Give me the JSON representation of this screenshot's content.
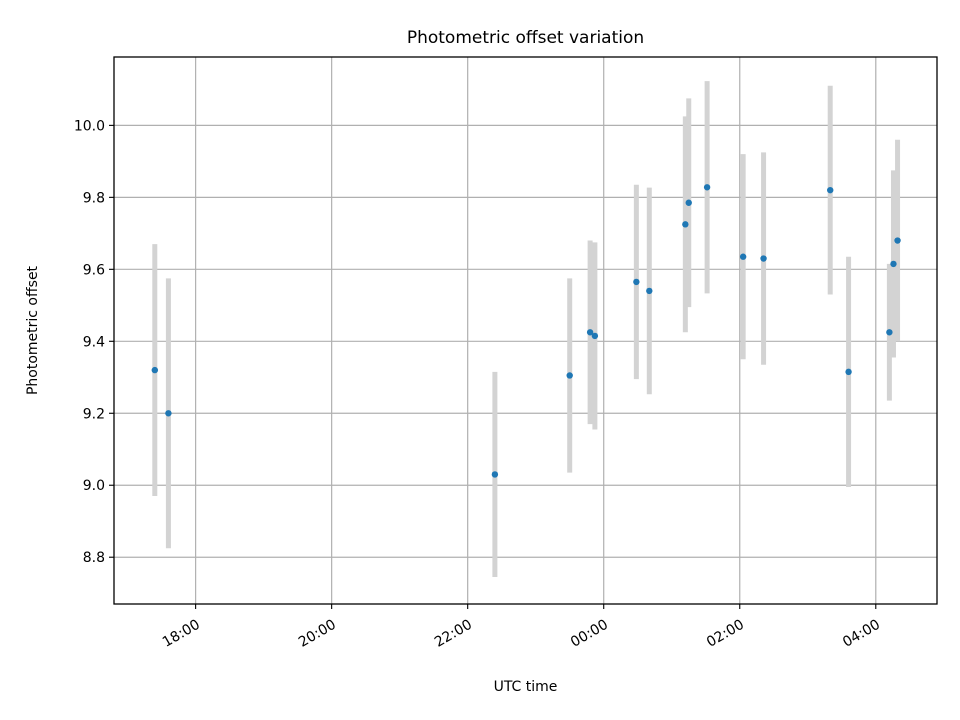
{
  "chart_data": {
    "type": "scatter",
    "title": "Photometric offset variation",
    "xlabel": "UTC time",
    "ylabel": "Photometric offset",
    "x_unit": "hours (UTC, continuous across midnight)",
    "xlim": [
      16.8,
      28.9
    ],
    "ylim": [
      8.67,
      10.19
    ],
    "grid": true,
    "x_ticks": [
      {
        "value": 18,
        "label": "18:00"
      },
      {
        "value": 20,
        "label": "20:00"
      },
      {
        "value": 22,
        "label": "22:00"
      },
      {
        "value": 24,
        "label": "00:00"
      },
      {
        "value": 26,
        "label": "02:00"
      },
      {
        "value": 28,
        "label": "04:00"
      }
    ],
    "y_ticks": [
      {
        "value": 8.8,
        "label": "8.8"
      },
      {
        "value": 9.0,
        "label": "9.0"
      },
      {
        "value": 9.2,
        "label": "9.2"
      },
      {
        "value": 9.4,
        "label": "9.4"
      },
      {
        "value": 9.6,
        "label": "9.6"
      },
      {
        "value": 9.8,
        "label": "9.8"
      },
      {
        "value": 10.0,
        "label": "10.0"
      }
    ],
    "colors": {
      "point": "#1f77b4",
      "errorbar": "#d3d3d3",
      "grid": "#b0b0b0"
    },
    "points": [
      {
        "x": 17.4,
        "y": 9.32,
        "yerr": 0.35
      },
      {
        "x": 17.6,
        "y": 9.2,
        "yerr": 0.375
      },
      {
        "x": 22.4,
        "y": 9.03,
        "yerr": 0.285
      },
      {
        "x": 23.5,
        "y": 9.305,
        "yerr": 0.27
      },
      {
        "x": 23.8,
        "y": 9.425,
        "yerr": 0.255
      },
      {
        "x": 23.87,
        "y": 9.415,
        "yerr": 0.26
      },
      {
        "x": 24.48,
        "y": 9.565,
        "yerr": 0.27
      },
      {
        "x": 24.67,
        "y": 9.54,
        "yerr": 0.287
      },
      {
        "x": 25.2,
        "y": 9.725,
        "yerr": 0.3
      },
      {
        "x": 25.25,
        "y": 9.785,
        "yerr": 0.29
      },
      {
        "x": 25.52,
        "y": 9.828,
        "yerr": 0.295
      },
      {
        "x": 26.05,
        "y": 9.635,
        "yerr": 0.285
      },
      {
        "x": 26.35,
        "y": 9.63,
        "yerr": 0.295
      },
      {
        "x": 27.33,
        "y": 9.82,
        "yerr": 0.29
      },
      {
        "x": 27.6,
        "y": 9.315,
        "yerr": 0.32
      },
      {
        "x": 28.2,
        "y": 9.425,
        "yerr": 0.19
      },
      {
        "x": 28.26,
        "y": 9.615,
        "yerr": 0.26
      },
      {
        "x": 28.32,
        "y": 9.68,
        "yerr": 0.28
      }
    ]
  }
}
